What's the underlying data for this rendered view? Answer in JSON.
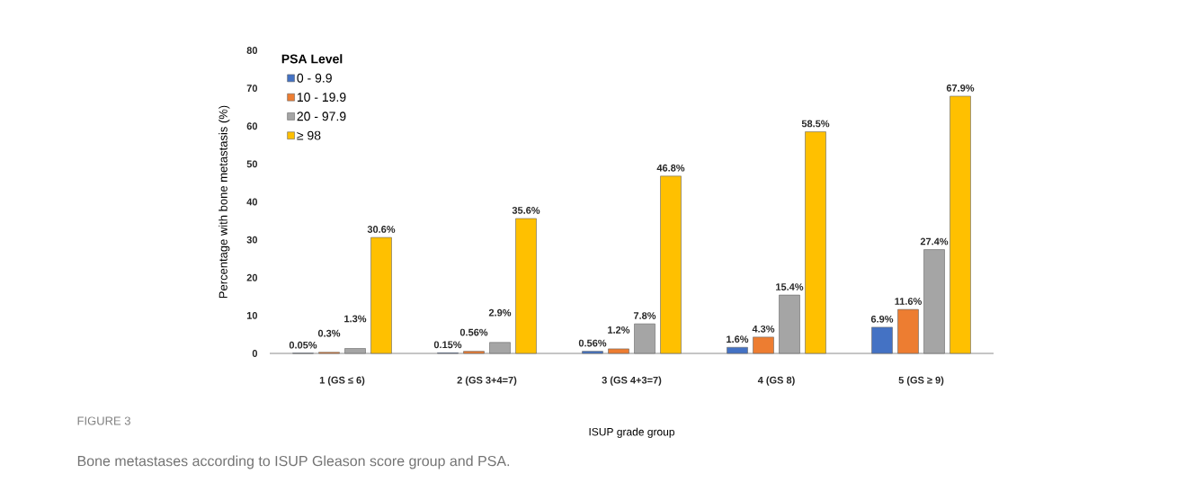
{
  "chart_data": {
    "type": "bar",
    "title": "FIGURE 3",
    "subtitle": "Bone metastases according to ISUP Gleason score group and PSA.",
    "xlabel": "ISUP grade group",
    "ylabel": "Percentage with bone metastasis (%)",
    "legend_title": "PSA Level",
    "categories": [
      "1 (GS ≤ 6)",
      "2 (GS 3+4=7)",
      "3 (GS 4+3=7)",
      "4 (GS 8)",
      "5 (GS ≥ 9)"
    ],
    "series": [
      {
        "name": "0 - 9.9",
        "color": "#4472c4",
        "values": [
          0.05,
          0.15,
          0.56,
          1.6,
          6.9
        ],
        "value_labels": [
          "0.05%",
          "0.15%",
          "0.56%",
          "1.6%",
          "6.9%"
        ]
      },
      {
        "name": "10 - 19.9",
        "color": "#ed7d31",
        "values": [
          0.3,
          0.56,
          1.2,
          4.3,
          11.6
        ],
        "value_labels": [
          "0.3%",
          "0.56%",
          "1.2%",
          "4.3%",
          "11.6%"
        ]
      },
      {
        "name": "20 - 97.9",
        "color": "#a5a5a5",
        "values": [
          1.3,
          2.9,
          7.8,
          15.4,
          27.4
        ],
        "value_labels": [
          "1.3%",
          "2.9%",
          "7.8%",
          "15.4%",
          "27.4%"
        ]
      },
      {
        "name": "≥ 98",
        "color": "#ffc000",
        "values": [
          30.6,
          35.6,
          46.8,
          58.5,
          67.9
        ],
        "value_labels": [
          "30.6%",
          "35.6%",
          "46.8%",
          "58.5%",
          "67.9%"
        ]
      }
    ],
    "ylim": [
      0,
      80
    ],
    "yticks": [
      0,
      10,
      20,
      30,
      40,
      50,
      60,
      70,
      80
    ],
    "legend": "top left"
  }
}
